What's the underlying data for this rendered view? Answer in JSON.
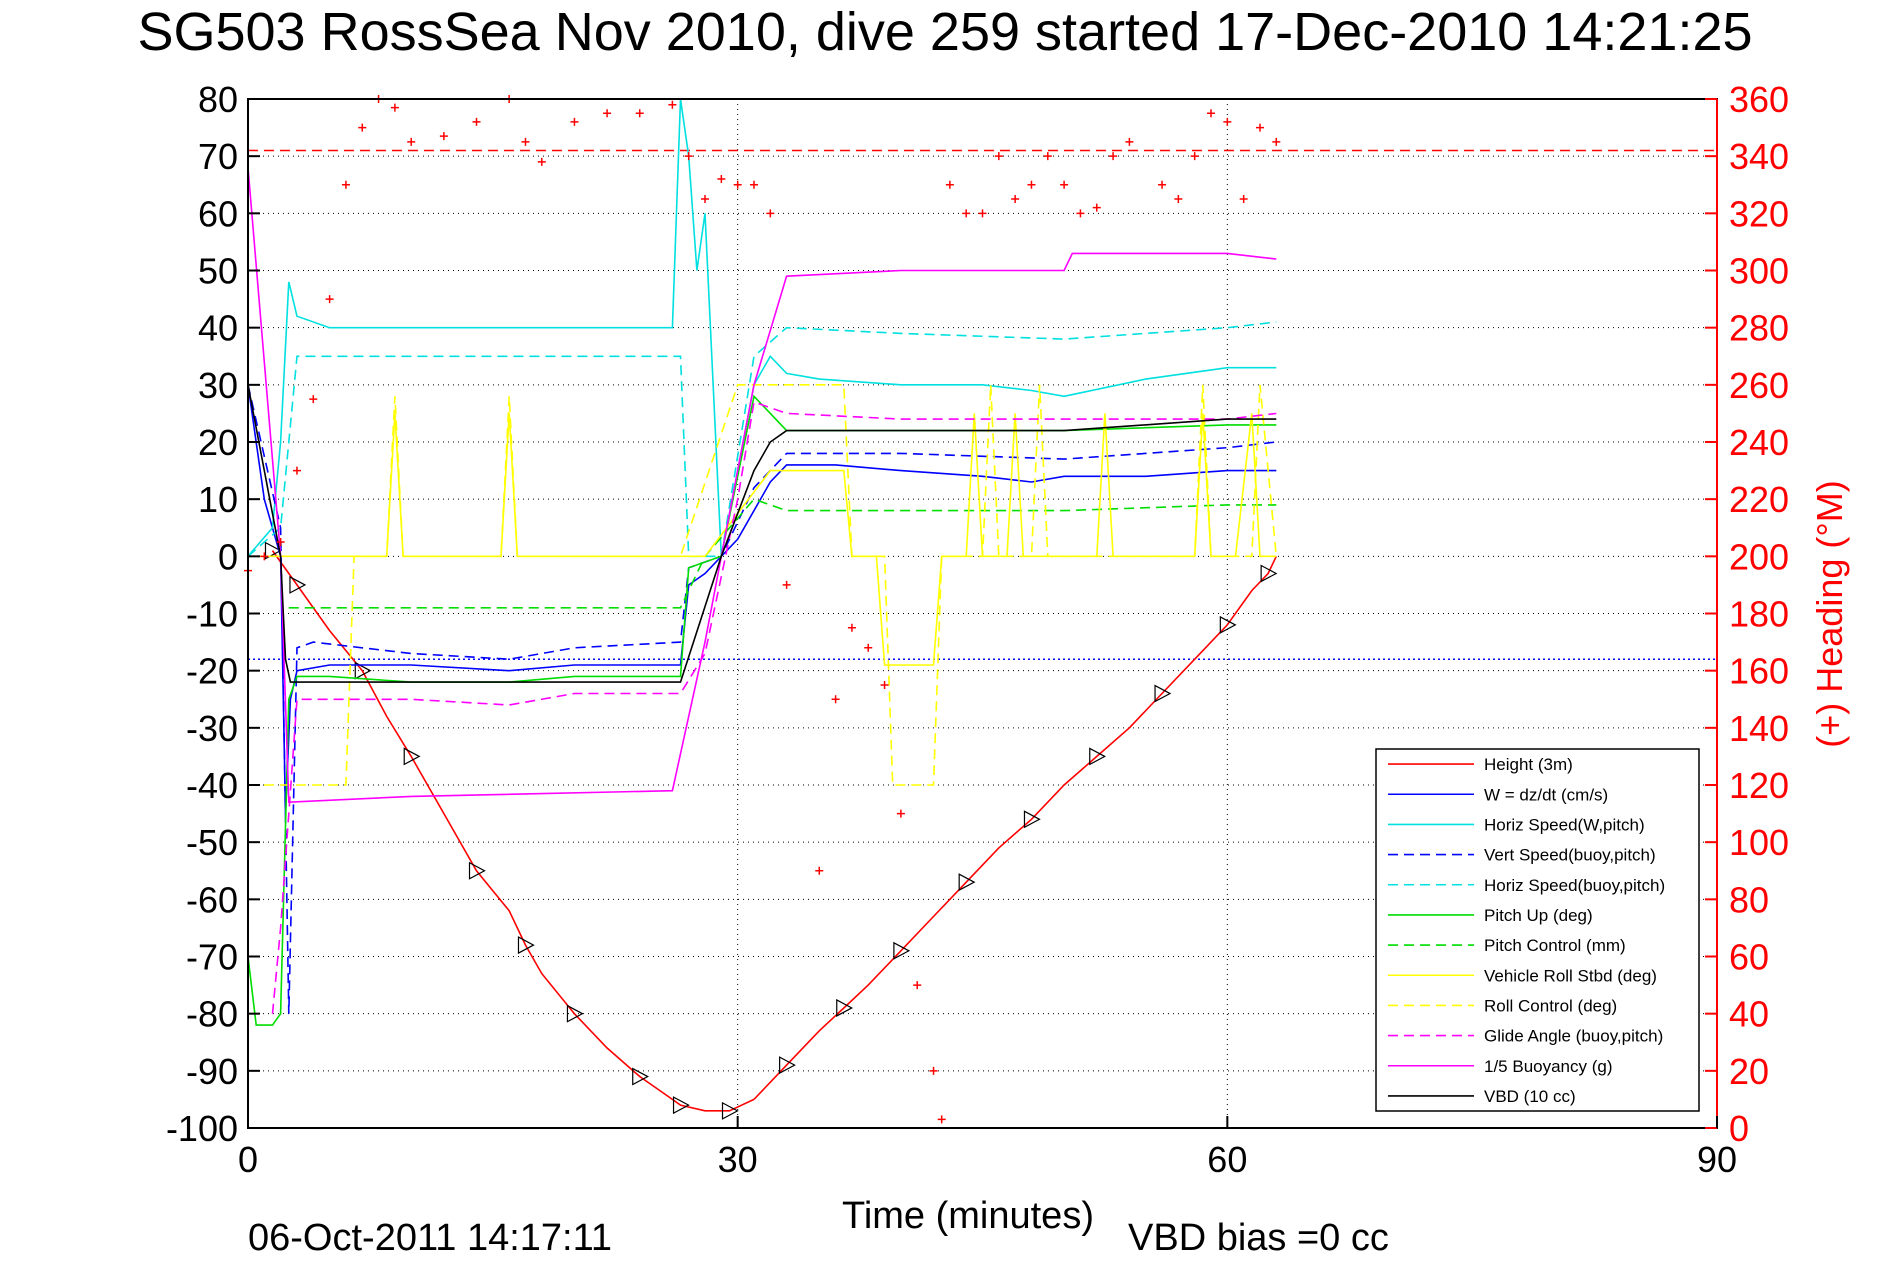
{
  "chart_data": {
    "type": "line",
    "title": "SG503 RossSea Nov 2010, dive 259 started 17-Dec-2010 14:21:25",
    "xlabel": "Time (minutes)",
    "ylabel_right": "(+) Heading (°M)",
    "footer_date": "06-Oct-2011 14:17:11",
    "footer_vbd": "VBD bias =0 cc",
    "xlim": [
      0,
      90
    ],
    "ylim": [
      -100,
      80
    ],
    "y2lim": [
      0,
      360
    ],
    "x_ticks": [
      "0",
      "30",
      "60",
      "90"
    ],
    "y_ticks": [
      "80",
      "70",
      "60",
      "50",
      "40",
      "30",
      "20",
      "10",
      "0",
      "-10",
      "-20",
      "-30",
      "-40",
      "-50",
      "-60",
      "-70",
      "-80",
      "-90",
      "-100"
    ],
    "y2_ticks": [
      "360",
      "340",
      "320",
      "300",
      "280",
      "260",
      "240",
      "220",
      "200",
      "180",
      "160",
      "140",
      "120",
      "100",
      "80",
      "60",
      "40",
      "20",
      "0"
    ],
    "grid": true,
    "legend_position": "bottom-right",
    "reference_lines": [
      {
        "axis": "y",
        "value": 71,
        "color": "#ff0000",
        "style": "dashed"
      },
      {
        "axis": "y",
        "value": -18,
        "color": "#0000ff",
        "style": "dotted"
      }
    ],
    "series": [
      {
        "name": "Height (3m)",
        "color": "#ff0000",
        "style": "solid",
        "x": [
          1.5,
          2,
          3,
          5,
          7,
          8.5,
          10,
          12,
          14,
          16,
          17,
          18,
          20,
          22,
          24,
          26,
          26.5,
          28,
          29.5,
          31,
          33,
          35,
          36.5,
          38,
          40,
          42,
          44,
          46,
          48,
          50,
          52,
          54,
          56,
          58,
          60,
          61.5,
          62.5,
          63
        ],
        "y": [
          1,
          -1,
          -5,
          -13,
          -20,
          -28,
          -35,
          -45,
          -55,
          -62,
          -68,
          -73,
          -80,
          -86,
          -91,
          -95,
          -96,
          -97,
          -97,
          -95,
          -89,
          -83,
          -79,
          -75,
          -69,
          -63,
          -57,
          -51,
          -46,
          -40,
          -35,
          -30,
          -24,
          -18,
          -12,
          -6,
          -3,
          0
        ]
      },
      {
        "name": "W = dz/dt (cm/s)",
        "color": "#0000ff",
        "style": "solid",
        "x": [
          0,
          1,
          2,
          2.3,
          2.6,
          3,
          5,
          10,
          16,
          20,
          26.5,
          27,
          28,
          30,
          32,
          33,
          36,
          40,
          45,
          48,
          50,
          55,
          60,
          63
        ],
        "y": [
          30,
          10,
          0,
          -45,
          -25,
          -20,
          -19,
          -19,
          -20,
          -19,
          -19,
          -5,
          -3,
          3,
          13,
          16,
          16,
          15,
          14,
          13,
          14,
          14,
          15,
          15
        ]
      },
      {
        "name": "Horiz Speed(W,pitch)",
        "color": "#00e0e0",
        "style": "solid",
        "x": [
          0,
          1.5,
          2,
          2.5,
          3,
          5,
          10,
          15,
          20,
          26,
          26.5,
          27,
          27.5,
          28,
          29,
          31,
          32,
          33,
          35,
          40,
          45,
          48,
          50,
          55,
          60,
          63
        ],
        "y": [
          0,
          5,
          20,
          48,
          42,
          40,
          40,
          40,
          40,
          40,
          80,
          70,
          50,
          60,
          0,
          30,
          35,
          32,
          31,
          30,
          30,
          29,
          28,
          31,
          33,
          33
        ]
      },
      {
        "name": "Vert Speed(buoy,pitch)",
        "color": "#0000ff",
        "style": "dashed",
        "x": [
          0,
          2,
          2.5,
          3,
          4,
          10,
          16,
          20,
          26.5,
          27,
          29,
          31,
          33,
          40,
          50,
          60,
          63
        ],
        "y": [
          30,
          5,
          -80,
          -16,
          -15,
          -17,
          -18,
          -16,
          -15,
          -2,
          0,
          12,
          18,
          18,
          17,
          19,
          20
        ]
      },
      {
        "name": "Horiz Speed(buoy,pitch)",
        "color": "#00e0e0",
        "style": "dashed",
        "x": [
          0,
          2,
          3,
          5,
          10,
          15,
          20,
          26.5,
          27,
          29,
          31,
          33,
          40,
          50,
          60,
          63
        ],
        "y": [
          0,
          5,
          35,
          35,
          35,
          35,
          35,
          35,
          0,
          0,
          35,
          40,
          39,
          38,
          40,
          41
        ]
      },
      {
        "name": "Pitch Up (deg)",
        "color": "#00dd00",
        "style": "solid",
        "x": [
          0,
          0.5,
          1.5,
          2,
          2.5,
          3,
          5,
          10,
          16,
          20,
          26.5,
          27,
          29,
          31,
          33,
          40,
          50,
          60,
          63
        ],
        "y": [
          -70,
          -82,
          -82,
          -80,
          -25,
          -21,
          -21,
          -22,
          -22,
          -21,
          -21,
          -2,
          0,
          28,
          22,
          22,
          22,
          23,
          23
        ]
      },
      {
        "name": "Pitch Control (mm)",
        "color": "#00dd00",
        "style": "dashed",
        "x": [
          2.5,
          10,
          20,
          26.5,
          28,
          31,
          33,
          40,
          50,
          60,
          63
        ],
        "y": [
          -9,
          -9,
          -9,
          -9,
          0,
          10,
          8,
          8,
          8,
          9,
          9
        ]
      },
      {
        "name": "Vehicle Roll Stbd (deg)",
        "color": "#ffff00",
        "style": "solid",
        "x": [
          0,
          3,
          6.5,
          7,
          8.5,
          9,
          9.5,
          15.5,
          16,
          16.5,
          26.5,
          28,
          32,
          36.5,
          37,
          38.5,
          39,
          42,
          42.5,
          44,
          44.5,
          45,
          46.5,
          47,
          47.5,
          48.5,
          52,
          52.5,
          53,
          58,
          58.5,
          59,
          60.5,
          61.5,
          62,
          63
        ],
        "y": [
          0,
          0,
          0,
          0,
          0,
          25,
          0,
          0,
          25,
          0,
          0,
          0,
          15,
          15,
          0,
          0,
          -19,
          -19,
          0,
          0,
          25,
          0,
          0,
          25,
          0,
          0,
          0,
          25,
          0,
          0,
          25,
          0,
          0,
          25,
          0,
          0
        ]
      },
      {
        "name": "Roll Control (deg)",
        "color": "#ffff00",
        "style": "dashed",
        "x": [
          0,
          6,
          6.5,
          8.5,
          9,
          9.5,
          15.5,
          16,
          16.5,
          26.5,
          30,
          31,
          36.5,
          37,
          39,
          39.5,
          42,
          42.5,
          45,
          45.5,
          46,
          48,
          48.5,
          49,
          58,
          58.5,
          59,
          61.5,
          62,
          63
        ],
        "y": [
          -40,
          -40,
          0,
          0,
          28,
          0,
          0,
          28,
          0,
          0,
          30,
          30,
          30,
          0,
          0,
          -40,
          -40,
          0,
          0,
          30,
          0,
          0,
          30,
          0,
          0,
          30,
          0,
          0,
          30,
          0
        ]
      },
      {
        "name": "Glide Angle (buoy,pitch)",
        "color": "#ff00ff",
        "style": "dashed",
        "x": [
          1.5,
          2,
          3,
          10,
          16,
          20,
          26.5,
          28,
          30,
          31,
          33,
          40,
          50,
          60,
          63
        ],
        "y": [
          -80,
          -65,
          -25,
          -25,
          -26,
          -24,
          -24,
          -17,
          10,
          27,
          25,
          24,
          24,
          24,
          25
        ]
      },
      {
        "name": "1/5 Buoyancy (g)",
        "color": "#ff00ff",
        "style": "solid",
        "x": [
          0,
          2,
          2.5,
          10,
          26,
          28,
          31,
          33,
          40,
          50,
          50.5,
          55,
          60,
          63
        ],
        "y": [
          68,
          0,
          -43,
          -42,
          -41,
          -15,
          30,
          49,
          50,
          50,
          53,
          53,
          53,
          52
        ]
      },
      {
        "name": "VBD (10 cc)",
        "color": "#000000",
        "style": "solid",
        "x": [
          0,
          2,
          2.3,
          2.6,
          3,
          10,
          26.5,
          29,
          31,
          32,
          33,
          40,
          42,
          50,
          60,
          63
        ],
        "y": [
          30,
          0,
          -18,
          -22,
          -22,
          -22,
          -22,
          0,
          15,
          20,
          22,
          22,
          22,
          22,
          24,
          24
        ]
      },
      {
        "name": "Heading",
        "color": "#ff0000",
        "style": "+",
        "axis": "right",
        "x": [
          0,
          1,
          2,
          3,
          4,
          5,
          6,
          7,
          8,
          9,
          10,
          12,
          14,
          16,
          17,
          18,
          20,
          22,
          24,
          26,
          27,
          28,
          29,
          30,
          31,
          32,
          33,
          35,
          36,
          37,
          38,
          39,
          40,
          41,
          42,
          42.5,
          43,
          44,
          45,
          46,
          47,
          48,
          49,
          50,
          51,
          52,
          53,
          54,
          56,
          57,
          58,
          59,
          60,
          61,
          62,
          63
        ],
        "y": [
          195,
          200,
          205,
          230,
          255,
          290,
          330,
          350,
          360,
          357,
          345,
          347,
          352,
          360,
          345,
          338,
          352,
          355,
          355,
          358,
          340,
          325,
          332,
          330,
          330,
          320,
          190,
          90,
          150,
          175,
          168,
          155,
          110,
          50,
          20,
          3,
          330,
          320,
          320,
          340,
          325,
          330,
          340,
          330,
          320,
          322,
          340,
          345,
          330,
          325,
          340,
          355,
          352,
          325,
          350,
          345
        ]
      }
    ]
  }
}
